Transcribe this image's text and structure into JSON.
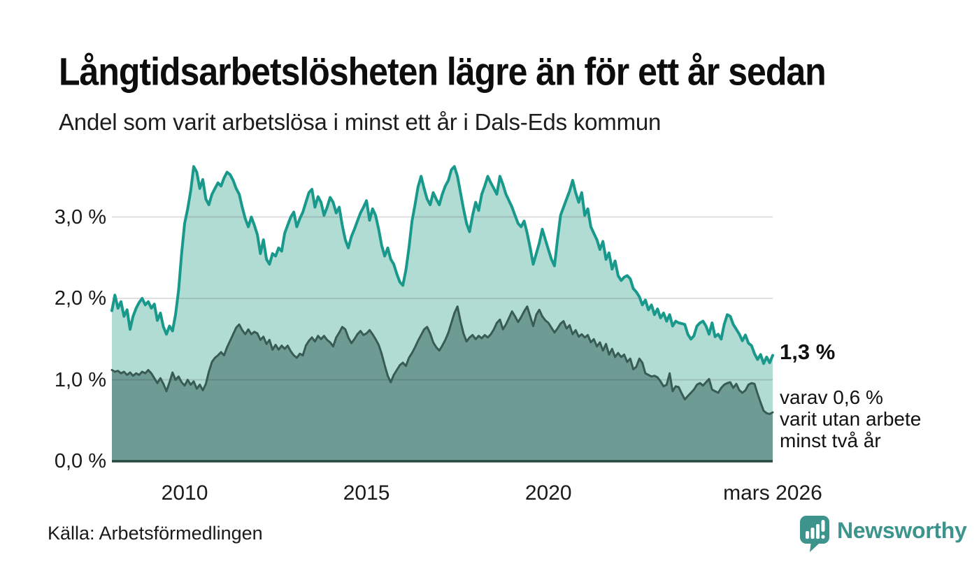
{
  "chart_data": {
    "type": "area",
    "title": "Långtidsarbetslösheten lägre än för ett år sedan",
    "subtitle": "Andel som varit arbetslösa i minst ett år i Dals-Eds kommun",
    "grid": true,
    "x_axis": {
      "range": [
        2008.0,
        2026.1667
      ],
      "ticks": [
        {
          "year": 2010,
          "label": "2010"
        },
        {
          "year": 2015,
          "label": "2015"
        },
        {
          "year": 2020,
          "label": "2020"
        },
        {
          "year": 2026.1667,
          "label": "mars 2026"
        }
      ]
    },
    "y_axis": {
      "range": [
        0,
        3.7
      ],
      "unit": "%",
      "ticks": [
        {
          "value": 0,
          "label": "0,0 %"
        },
        {
          "value": 1,
          "label": "1,0 %"
        },
        {
          "value": 2,
          "label": "2,0 %"
        },
        {
          "value": 3,
          "label": "3,0 %"
        }
      ]
    },
    "series": [
      {
        "name": "arbetslösa minst ett år",
        "line_color": "#18998b",
        "fill_color": "#b1dcd4",
        "line_width": 4,
        "start_year": 2008.0,
        "monthly_values": [
          1.85,
          2.04,
          1.88,
          1.96,
          1.78,
          1.86,
          1.62,
          1.78,
          1.88,
          1.95,
          2.0,
          1.92,
          1.96,
          1.88,
          1.93,
          1.73,
          1.82,
          1.65,
          1.56,
          1.66,
          1.6,
          1.8,
          2.1,
          2.55,
          2.92,
          3.1,
          3.32,
          3.62,
          3.55,
          3.35,
          3.46,
          3.22,
          3.15,
          3.28,
          3.35,
          3.42,
          3.38,
          3.48,
          3.55,
          3.52,
          3.45,
          3.35,
          3.28,
          3.12,
          2.98,
          2.88,
          3.0,
          2.9,
          2.78,
          2.55,
          2.72,
          2.48,
          2.42,
          2.55,
          2.52,
          2.62,
          2.58,
          2.8,
          2.9,
          3.0,
          3.06,
          2.88,
          2.98,
          3.06,
          3.18,
          3.3,
          3.34,
          3.12,
          3.25,
          3.18,
          3.02,
          3.12,
          3.24,
          3.18,
          3.05,
          3.12,
          2.9,
          2.72,
          2.62,
          2.76,
          2.85,
          2.95,
          3.05,
          3.12,
          3.2,
          2.96,
          3.1,
          3.02,
          2.85,
          2.65,
          2.52,
          2.62,
          2.48,
          2.42,
          2.3,
          2.2,
          2.16,
          2.35,
          2.62,
          2.95,
          3.15,
          3.37,
          3.5,
          3.35,
          3.22,
          3.15,
          3.3,
          3.22,
          3.15,
          3.28,
          3.38,
          3.45,
          3.58,
          3.62,
          3.5,
          3.3,
          3.1,
          2.92,
          2.82,
          3.02,
          3.18,
          3.08,
          3.28,
          3.38,
          3.5,
          3.42,
          3.35,
          3.28,
          3.5,
          3.4,
          3.28,
          3.2,
          3.12,
          3.02,
          2.92,
          2.88,
          2.95,
          2.8,
          2.62,
          2.42,
          2.55,
          2.68,
          2.85,
          2.72,
          2.6,
          2.48,
          2.4,
          2.72,
          3.02,
          3.12,
          3.22,
          3.32,
          3.45,
          3.3,
          3.18,
          3.3,
          3.02,
          3.1,
          2.88,
          2.8,
          2.72,
          2.6,
          2.7,
          2.48,
          2.56,
          2.36,
          2.46,
          2.28,
          2.22,
          2.26,
          2.28,
          2.24,
          2.12,
          2.08,
          2.02,
          1.92,
          1.98,
          1.86,
          1.92,
          1.8,
          1.87,
          1.76,
          1.82,
          1.72,
          1.8,
          1.66,
          1.72,
          1.7,
          1.69,
          1.68,
          1.56,
          1.5,
          1.54,
          1.66,
          1.7,
          1.72,
          1.66,
          1.56,
          1.7,
          1.53,
          1.56,
          1.5,
          1.68,
          1.8,
          1.78,
          1.68,
          1.62,
          1.56,
          1.48,
          1.55,
          1.45,
          1.42,
          1.32,
          1.25,
          1.31,
          1.2,
          1.28,
          1.21,
          1.3
        ]
      },
      {
        "name": "varav utan arbete minst två år",
        "line_color": "#385b54",
        "fill_color": "#6f9b95",
        "line_width": 3,
        "start_year": 2008.0,
        "monthly_values": [
          1.12,
          1.1,
          1.11,
          1.08,
          1.1,
          1.06,
          1.09,
          1.05,
          1.08,
          1.06,
          1.1,
          1.08,
          1.12,
          1.08,
          1.02,
          0.96,
          1.02,
          0.95,
          0.86,
          0.97,
          1.09,
          1.0,
          1.04,
          0.97,
          0.93,
          1.0,
          0.94,
          0.98,
          0.89,
          0.94,
          0.87,
          0.95,
          1.1,
          1.22,
          1.27,
          1.3,
          1.34,
          1.3,
          1.4,
          1.48,
          1.56,
          1.64,
          1.68,
          1.61,
          1.56,
          1.62,
          1.56,
          1.59,
          1.57,
          1.49,
          1.53,
          1.44,
          1.49,
          1.37,
          1.43,
          1.37,
          1.42,
          1.38,
          1.42,
          1.35,
          1.3,
          1.27,
          1.32,
          1.3,
          1.42,
          1.48,
          1.52,
          1.47,
          1.54,
          1.5,
          1.54,
          1.49,
          1.46,
          1.41,
          1.52,
          1.58,
          1.65,
          1.62,
          1.52,
          1.45,
          1.5,
          1.56,
          1.6,
          1.55,
          1.57,
          1.61,
          1.56,
          1.5,
          1.43,
          1.32,
          1.18,
          1.05,
          0.97,
          1.06,
          1.12,
          1.18,
          1.21,
          1.17,
          1.27,
          1.33,
          1.4,
          1.48,
          1.55,
          1.62,
          1.65,
          1.57,
          1.46,
          1.4,
          1.36,
          1.42,
          1.49,
          1.58,
          1.7,
          1.82,
          1.9,
          1.72,
          1.57,
          1.47,
          1.52,
          1.55,
          1.5,
          1.54,
          1.51,
          1.55,
          1.52,
          1.56,
          1.62,
          1.7,
          1.74,
          1.62,
          1.68,
          1.76,
          1.84,
          1.78,
          1.71,
          1.77,
          1.84,
          1.9,
          1.78,
          1.66,
          1.8,
          1.86,
          1.78,
          1.73,
          1.7,
          1.64,
          1.58,
          1.63,
          1.69,
          1.72,
          1.63,
          1.67,
          1.56,
          1.61,
          1.53,
          1.56,
          1.52,
          1.55,
          1.46,
          1.5,
          1.41,
          1.46,
          1.36,
          1.44,
          1.31,
          1.38,
          1.28,
          1.33,
          1.28,
          1.31,
          1.22,
          1.26,
          1.13,
          1.16,
          1.26,
          1.21,
          1.08,
          1.06,
          1.04,
          1.05,
          1.03,
          0.98,
          0.92,
          0.94,
          1.08,
          0.86,
          0.92,
          0.91,
          0.83,
          0.76,
          0.8,
          0.84,
          0.88,
          0.94,
          0.96,
          0.93,
          0.97,
          1.01,
          0.88,
          0.86,
          0.84,
          0.9,
          0.94,
          0.96,
          0.97,
          0.9,
          0.95,
          0.87,
          0.84,
          0.87,
          0.94,
          0.96,
          0.95,
          0.83,
          0.72,
          0.62,
          0.59,
          0.58,
          0.6
        ]
      }
    ],
    "annotation": {
      "value_label": "1,3 %",
      "note_lines": [
        "varav 0,6 %",
        "varit utan arbete",
        "minst två år"
      ]
    }
  },
  "footer": {
    "source": "Källa: Arbetsförmedlingen",
    "brand": "Newsworthy"
  },
  "colors": {
    "brand_teal": "#3c948c",
    "baseline": "#2c4a44",
    "grid": "rgba(0,0,0,0.12)"
  }
}
